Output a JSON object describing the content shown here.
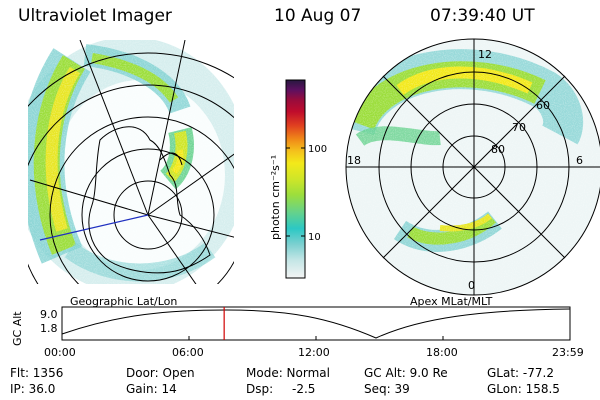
{
  "header": {
    "instrument": "Ultraviolet Imager",
    "date": "10 Aug 07",
    "time": "07:39:40 UT"
  },
  "geo_panel": {
    "label": "Geographic Lat/Lon"
  },
  "apex_panel": {
    "label": "Apex MLat/MLT",
    "mlt_labels": [
      "12",
      "18",
      "6",
      "0"
    ],
    "mlat_labels": [
      "60",
      "70",
      "80"
    ]
  },
  "colorbar": {
    "unit_label": "photon cm⁻²s⁻¹",
    "ticks": [
      "100",
      "10"
    ],
    "colors": [
      "#f4f4f4",
      "#c4e6e6",
      "#7cd0d0",
      "#2cc8c4",
      "#64d28c",
      "#9cde3c",
      "#cfe628",
      "#f3e91a",
      "#f4c21c",
      "#f08a18",
      "#e04020",
      "#c00c2c",
      "#980c3c",
      "#5c1060",
      "#281840"
    ]
  },
  "altitude_plot": {
    "axis_label": "GC Alt",
    "y_ticks": [
      "9.0",
      "1.8"
    ],
    "x_ticks": [
      "00:00",
      "06:00",
      "12:00",
      "18:00",
      "23:59"
    ],
    "current_hour_fraction": 0.3192
  },
  "info": {
    "flt": "Flt: 1356",
    "ip": "IP: 36.0",
    "door": "Door: Open",
    "gain": "Gain: 14",
    "mode": "Mode: Normal",
    "dsp_label": "Dsp:",
    "dsp_value": "-2.5",
    "gc_alt": "GC Alt: 9.0 Re",
    "seq": "Seq: 39",
    "glat": "GLat: -77.2",
    "glon": "GLon: 158.5"
  }
}
